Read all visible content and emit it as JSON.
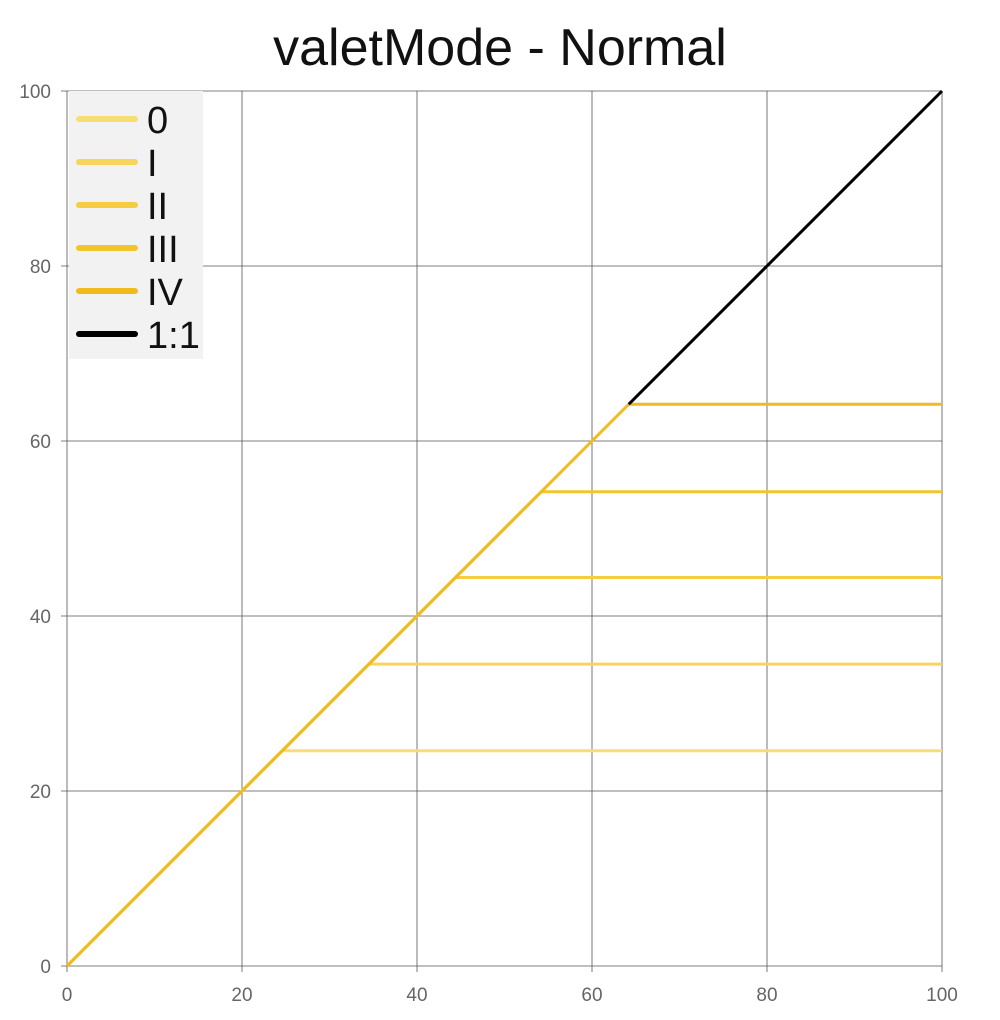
{
  "chart_data": {
    "type": "line",
    "title": "valetMode - Normal",
    "xlabel": "",
    "ylabel": "",
    "xlim": [
      0,
      100
    ],
    "ylim": [
      0,
      100
    ],
    "x_ticks": [
      0,
      20,
      40,
      60,
      80,
      100
    ],
    "y_ticks": [
      0,
      20,
      40,
      60,
      80,
      100
    ],
    "grid": true,
    "legend_position": "top-left",
    "series": [
      {
        "name": "0",
        "color": "#f7de72",
        "x": [
          0,
          24.6,
          100
        ],
        "y": [
          0,
          24.6,
          24.6
        ]
      },
      {
        "name": "I",
        "color": "#f6d55a",
        "x": [
          0,
          34.5,
          100
        ],
        "y": [
          0,
          34.5,
          34.5
        ]
      },
      {
        "name": "II",
        "color": "#f5cc42",
        "x": [
          0,
          44.4,
          100
        ],
        "y": [
          0,
          44.4,
          44.4
        ]
      },
      {
        "name": "III",
        "color": "#f3c52c",
        "x": [
          0,
          54.2,
          100
        ],
        "y": [
          0,
          54.2,
          54.2
        ]
      },
      {
        "name": "IV",
        "color": "#efbb1e",
        "x": [
          0,
          64.2,
          100
        ],
        "y": [
          0,
          64.2,
          64.2
        ]
      },
      {
        "name": "1:1",
        "color": "#000000",
        "x": [
          64.2,
          100
        ],
        "y": [
          64.2,
          100
        ]
      }
    ]
  }
}
